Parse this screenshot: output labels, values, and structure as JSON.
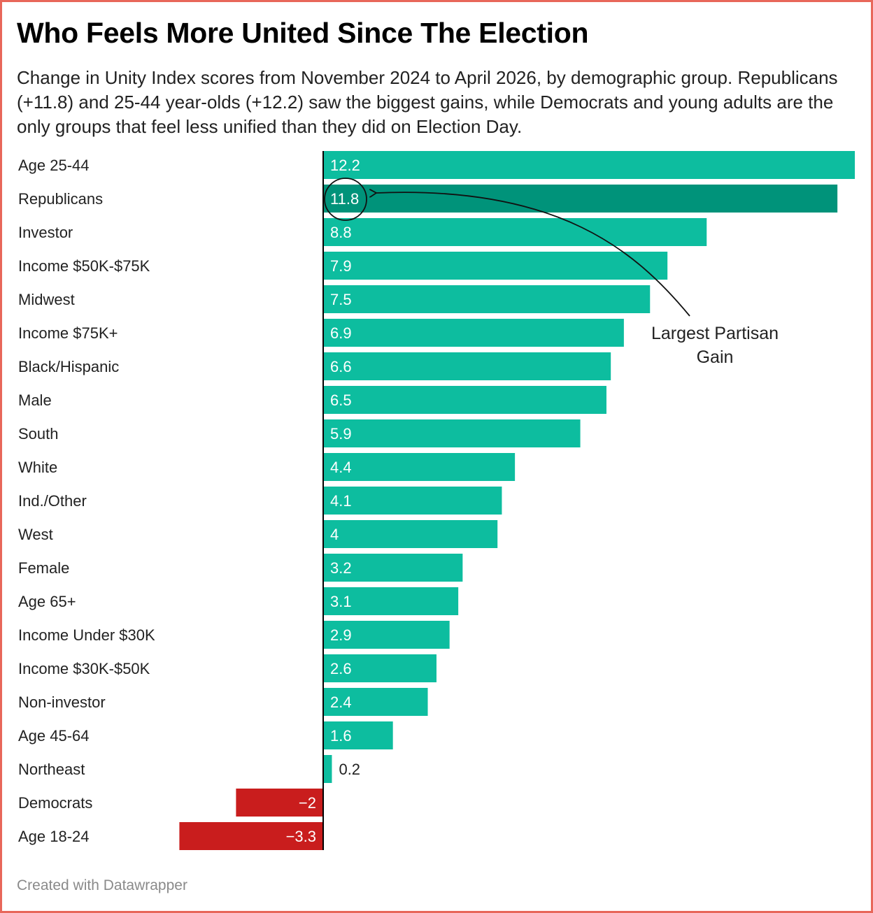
{
  "title": "Who Feels More United Since The Election",
  "subtitle": "Change in Unity Index scores from November 2024 to April 2026, by demographic group. Republicans (+11.8) and 25-44 year-olds (+12.2) saw the biggest gains, while Democrats and young adults are the only groups that feel less unified than they did on Election Day.",
  "footer": "Created with Datawrapper",
  "colors": {
    "positive": "#0dbd9f",
    "highlight": "#00937a",
    "negative": "#c91d1d",
    "border": "#e8675a"
  },
  "chart_data": {
    "type": "bar",
    "orientation": "horizontal",
    "categories": [
      "Age 25-44",
      "Republicans",
      "Investor",
      "Income $50K-$75K",
      "Midwest",
      "Income $75K+",
      "Black/Hispanic",
      "Male",
      "South",
      "White",
      "Ind./Other",
      "West",
      "Female",
      "Age 65+",
      "Income Under $30K",
      "Income $30K-$50K",
      "Non-investor",
      "Age 45-64",
      "Northeast",
      "Democrats",
      "Age 18-24"
    ],
    "values": [
      12.2,
      11.8,
      8.8,
      7.9,
      7.5,
      6.9,
      6.6,
      6.5,
      5.9,
      4.4,
      4.1,
      4,
      3.2,
      3.1,
      2.9,
      2.6,
      2.4,
      1.6,
      0.2,
      -2,
      -3.3
    ],
    "value_labels": [
      "12.2",
      "11.8",
      "8.8",
      "7.9",
      "7.5",
      "6.9",
      "6.6",
      "6.5",
      "5.9",
      "4.4",
      "4.1",
      "4",
      "3.2",
      "3.1",
      "2.9",
      "2.6",
      "2.4",
      "1.6",
      "0.2",
      "−2",
      "−3.3"
    ],
    "highlighted": "Republicans",
    "xlim": [
      -3.3,
      12.2
    ],
    "annotation": {
      "text_lines": [
        "Largest Partisan",
        "Gain"
      ],
      "target": "Republicans"
    }
  }
}
